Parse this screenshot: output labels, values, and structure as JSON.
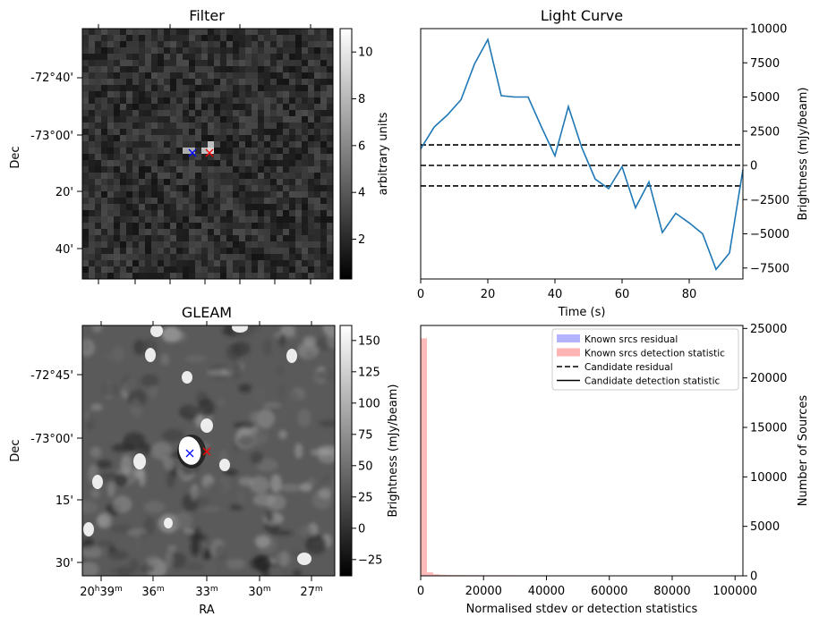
{
  "chart_data": [
    {
      "panel": "filter",
      "type": "heatmap",
      "title": "Filter",
      "ylabel": "Dec",
      "ytick_labels": [
        "-72°40'",
        "-73°00'",
        "20'",
        "40'"
      ],
      "colorbar": {
        "label": "arbitrary units",
        "ticks": [
          2,
          4,
          6,
          8,
          10
        ],
        "range": [
          0.3,
          11
        ],
        "cmap": "gray"
      },
      "markers": [
        {
          "symbol": "x",
          "color": "#0000ff"
        },
        {
          "symbol": "x",
          "color": "#ff0000"
        }
      ],
      "grid_size": [
        40,
        40
      ]
    },
    {
      "panel": "light_curve",
      "type": "line",
      "title": "Light Curve",
      "xlabel": "Time (s)",
      "ylabel": "Brightness (mJy/beam)",
      "xlim": [
        0,
        96
      ],
      "ylim": [
        -8300,
        10000
      ],
      "xticks": [
        0,
        20,
        40,
        60,
        80
      ],
      "yticks": [
        -7500,
        -5000,
        -2500,
        0,
        2500,
        5000,
        7500,
        10000
      ],
      "color": "#1f77b4",
      "x": [
        0,
        4,
        8,
        12,
        16,
        20,
        24,
        28,
        32,
        36,
        40,
        44,
        48,
        52,
        56,
        60,
        64,
        68,
        72,
        76,
        80,
        84,
        88,
        92,
        96
      ],
      "y": [
        1200,
        2800,
        3700,
        4800,
        7400,
        9200,
        5100,
        5000,
        5000,
        2800,
        700,
        4300,
        1300,
        -1000,
        -1700,
        -100,
        -3100,
        -1200,
        -4900,
        -3500,
        -4200,
        -5000,
        -7600,
        -6400,
        -300
      ],
      "hlines": [
        {
          "y": 1500,
          "style": "dashed",
          "color": "#000000"
        },
        {
          "y": 0,
          "style": "dashed",
          "color": "#000000"
        },
        {
          "y": -1500,
          "style": "dashed",
          "color": "#000000"
        }
      ]
    },
    {
      "panel": "gleam",
      "type": "heatmap",
      "title": "GLEAM",
      "xlabel": "RA",
      "ylabel": "Dec",
      "xtick_labels": [
        "20h39m",
        "36m",
        "33m",
        "30m",
        "27m"
      ],
      "ytick_labels": [
        "-72°45'",
        "-73°00'",
        "15'",
        "30'"
      ],
      "colorbar": {
        "label": "Brightness (mJy/beam)",
        "ticks": [
          -25,
          0,
          25,
          50,
          75,
          100,
          125,
          150
        ],
        "range": [
          -38,
          162
        ],
        "cmap": "gray"
      },
      "markers": [
        {
          "symbol": "x",
          "color": "#0000ff"
        },
        {
          "symbol": "x",
          "color": "#ff0000"
        }
      ]
    },
    {
      "panel": "histogram",
      "type": "bar",
      "xlabel": "Normalised stdev or detection statistics",
      "ylabel": "Number of Sources",
      "xlim": [
        0,
        102500
      ],
      "ylim": [
        0,
        25300
      ],
      "xticks": [
        0,
        20000,
        40000,
        60000,
        80000,
        100000
      ],
      "yticks": [
        0,
        5000,
        10000,
        15000,
        20000,
        25000
      ],
      "series": [
        {
          "name": "Known srcs residual",
          "color": "#b3b3ff",
          "bins": [
            [
              0,
              2000,
              150
            ],
            [
              2000,
              4000,
              40
            ]
          ]
        },
        {
          "name": "Known srcs detection statistic",
          "color": "#ffb3b3",
          "bins": [
            [
              0,
              2000,
              24000
            ],
            [
              2000,
              4000,
              350
            ],
            [
              4000,
              6000,
              160
            ],
            [
              6000,
              8000,
              110
            ],
            [
              8000,
              10000,
              90
            ],
            [
              10000,
              14000,
              80
            ],
            [
              14000,
              20000,
              70
            ],
            [
              20000,
              30000,
              60
            ],
            [
              30000,
              40000,
              50
            ],
            [
              40000,
              60000,
              45
            ],
            [
              60000,
              80000,
              40
            ],
            [
              80000,
              100000,
              35
            ]
          ]
        }
      ],
      "legend": {
        "placement": "top-right",
        "entries": [
          {
            "label": "Known srcs residual",
            "kind": "patch",
            "color": "#b3b3ff"
          },
          {
            "label": "Known srcs detection statistic",
            "kind": "patch",
            "color": "#ffb3b3"
          },
          {
            "label": "Candidate residual",
            "kind": "dashed",
            "color": "#000000"
          },
          {
            "label": "Candidate detection statistic",
            "kind": "solid",
            "color": "#000000"
          }
        ]
      }
    }
  ]
}
